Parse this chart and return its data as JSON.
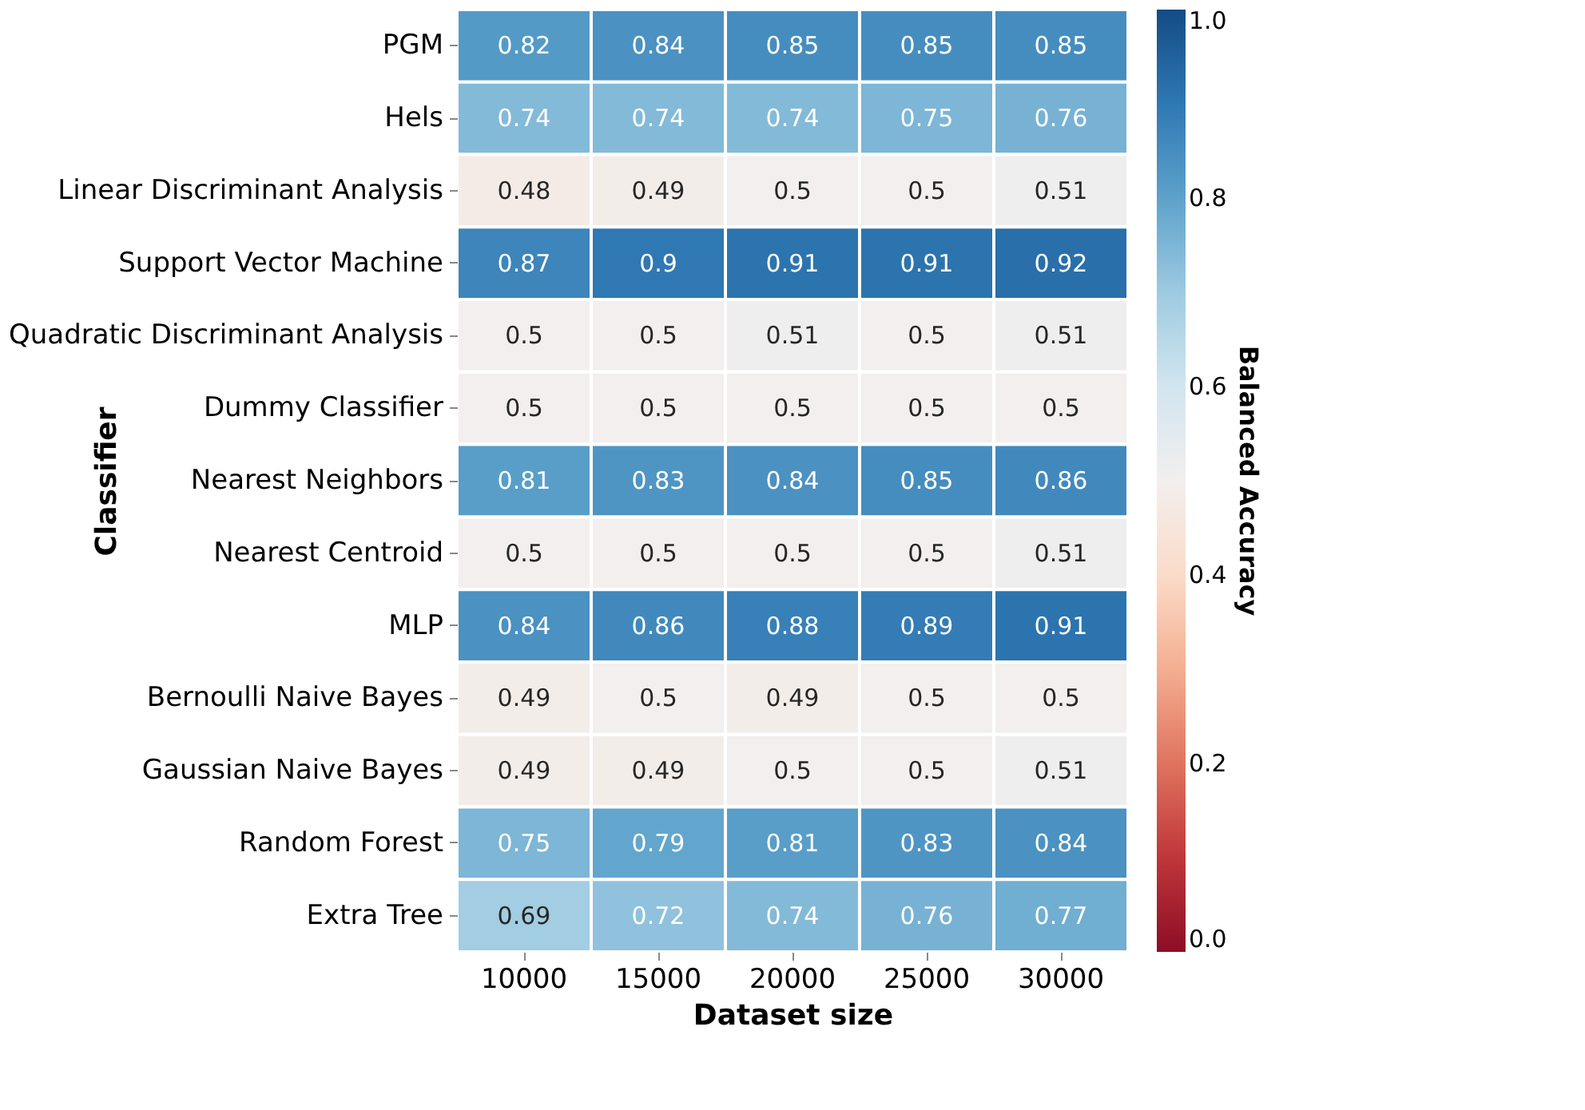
{
  "chart_data": {
    "type": "heatmap",
    "xlabel": "Dataset size",
    "ylabel": "Classifier",
    "clabel": "Balanced Accuracy",
    "categories": [
      "10000",
      "15000",
      "20000",
      "25000",
      "30000"
    ],
    "y_categories": [
      "PGM",
      "Hels",
      "Linear Discriminant Analysis",
      "Support Vector Machine",
      "Quadratic Discriminant Analysis",
      "Dummy Classifier",
      "Nearest Neighbors",
      "Nearest Centroid",
      "MLP",
      "Bernoulli Naive Bayes",
      "Gaussian Naive Bayes",
      "Random Forest",
      "Extra Tree"
    ],
    "cells": [
      [
        0.82,
        0.84,
        0.85,
        0.85,
        0.85
      ],
      [
        0.74,
        0.74,
        0.74,
        0.75,
        0.76
      ],
      [
        0.48,
        0.49,
        0.5,
        0.5,
        0.51
      ],
      [
        0.87,
        0.9,
        0.91,
        0.91,
        0.92
      ],
      [
        0.5,
        0.5,
        0.51,
        0.5,
        0.51
      ],
      [
        0.5,
        0.5,
        0.5,
        0.5,
        0.5
      ],
      [
        0.81,
        0.83,
        0.84,
        0.85,
        0.86
      ],
      [
        0.5,
        0.5,
        0.5,
        0.5,
        0.51
      ],
      [
        0.84,
        0.86,
        0.88,
        0.89,
        0.91
      ],
      [
        0.49,
        0.5,
        0.49,
        0.5,
        0.5
      ],
      [
        0.49,
        0.49,
        0.5,
        0.5,
        0.51
      ],
      [
        0.75,
        0.79,
        0.81,
        0.83,
        0.84
      ],
      [
        0.69,
        0.72,
        0.74,
        0.76,
        0.77
      ]
    ],
    "clim": [
      0.0,
      1.0
    ],
    "cticks": [
      {
        "value": 0,
        "label": "0.0"
      },
      {
        "value": 0.2,
        "label": "0.2"
      },
      {
        "value": 0.4,
        "label": "0.4"
      },
      {
        "value": 0.6,
        "label": "0.6"
      },
      {
        "value": 0.8,
        "label": "0.8"
      },
      {
        "value": 1,
        "label": "1.0"
      }
    ],
    "data_labels": true
  }
}
